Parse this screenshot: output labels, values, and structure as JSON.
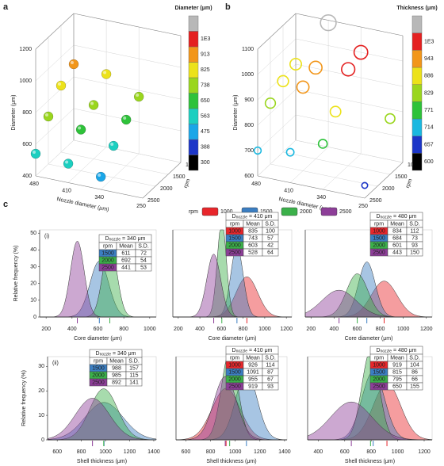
{
  "chart_data": [
    {
      "type": "scatter3d",
      "panel_label": "a",
      "marker": "sphere",
      "xlabel": "Nozzle diameter (μm)",
      "ylabel": "rpm",
      "zlabel": "Diameter (μm)",
      "xlim": [
        480,
        250
      ],
      "xticks": [
        480,
        410,
        340,
        250
      ],
      "ylim": [
        2500,
        1000
      ],
      "yticks": [
        2500,
        2000,
        1500,
        1000
      ],
      "zlim": [
        400,
        1200
      ],
      "zticks": [
        400,
        600,
        800,
        1000,
        1200
      ],
      "colorbar": {
        "title": "Diameter (μm)",
        "ticks": [
          300,
          388,
          475,
          563,
          650,
          738,
          825,
          913,
          {
            "value": 1000,
            "label": "1E3"
          }
        ],
        "colors": [
          "#000000",
          "#1c36c8",
          "#1aa6e8",
          "#1ccfc0",
          "#2ec23a",
          "#9ad61e",
          "#ece21a",
          "#f2961a",
          "#e42020"
        ],
        "over_color": "#b8b8b8"
      },
      "points": {
        "x": [
          480,
          480,
          480,
          480,
          410,
          410,
          410,
          410,
          340,
          340,
          340,
          340
        ],
        "y": [
          1000,
          1500,
          2000,
          2500,
          1000,
          1500,
          2000,
          2500,
          1000,
          1500,
          2000,
          2500
        ],
        "z": [
          880,
          820,
          700,
          540,
          860,
          740,
          660,
          520,
          760,
          690,
          600,
          480
        ]
      }
    },
    {
      "type": "scatter3d",
      "panel_label": "b",
      "marker": "ring",
      "xlabel": "Nozzle diameter (μm)",
      "ylabel": "rpm",
      "zlabel": "Diameter (μm)",
      "xlim": [
        480,
        250
      ],
      "xticks": [
        480,
        410,
        340,
        250
      ],
      "ylim": [
        2500,
        1000
      ],
      "yticks": [
        2500,
        2000,
        1500,
        1000
      ],
      "zlim": [
        600,
        1100
      ],
      "zticks": [
        600,
        700,
        800,
        900,
        1000,
        1100
      ],
      "colorbar": {
        "title": "Thickness (μm)",
        "ticks": [
          600,
          657,
          714,
          771,
          829,
          886,
          943,
          {
            "value": 1000,
            "label": "1E3"
          }
        ],
        "colors": [
          "#000000",
          "#1c36c8",
          "#1ab8e0",
          "#2ec23a",
          "#9ad61e",
          "#ece21a",
          "#f2961a",
          "#e42020"
        ],
        "over_color": "#b8b8b8"
      },
      "points": {
        "x": [
          480,
          480,
          480,
          480,
          410,
          410,
          410,
          410,
          340,
          340,
          340,
          340,
          250,
          250
        ],
        "y": [
          1000,
          1500,
          2000,
          2500,
          1000,
          1500,
          2000,
          2500,
          1000,
          1500,
          2000,
          2500,
          1500,
          2500
        ],
        "z": [
          900,
          880,
          840,
          700,
          1090,
          960,
          930,
          720,
          1000,
          980,
          860,
          780,
          820,
          650
        ]
      }
    },
    {
      "type": "density",
      "panel_label": "c",
      "legend_title": "rpm",
      "legend": [
        {
          "name": "1000",
          "color": "#e8262b"
        },
        {
          "name": "1500",
          "color": "#3b7ec2"
        },
        {
          "name": "2000",
          "color": "#3bb04a"
        },
        {
          "name": "2500",
          "color": "#8d3e98"
        }
      ],
      "row_label": "(i)",
      "ylabel": "Relative frequency (%)",
      "xlabel": "Core diameter (μm)",
      "xlim": [
        150,
        1050
      ],
      "xticks": [
        200,
        400,
        600,
        800,
        1000
      ],
      "ylim": [
        0,
        52
      ],
      "yticks": [
        0,
        10,
        20,
        30,
        40,
        50
      ],
      "table_title": {
        "main": "D",
        "sub": "nozzle",
        "rest": " = 340 μm"
      },
      "table_header": [
        "rpm",
        "Mean",
        "S.D."
      ],
      "series": [
        {
          "name": "1500",
          "color": "#3b7ec2",
          "mean": 611,
          "sd": 72
        },
        {
          "name": "2000",
          "color": "#3bb04a",
          "mean": 692,
          "sd": 54
        },
        {
          "name": "2500",
          "color": "#8d3e98",
          "mean": 441,
          "sd": 53
        }
      ]
    },
    {
      "type": "density",
      "xlabel": "Core diameter (μm)",
      "xlim": [
        150,
        1250
      ],
      "xticks": [
        200,
        400,
        600,
        800,
        1000,
        1200
      ],
      "ylim": [
        0,
        52
      ],
      "table_title": {
        "main": "D",
        "sub": "nozzle",
        "rest": " = 410 μm"
      },
      "table_header": [
        "rpm",
        "Mean",
        "S.D."
      ],
      "series": [
        {
          "name": "1000",
          "color": "#e8262b",
          "mean": 835,
          "sd": 100
        },
        {
          "name": "1500",
          "color": "#3b7ec2",
          "mean": 743,
          "sd": 57
        },
        {
          "name": "2000",
          "color": "#3bb04a",
          "mean": 603,
          "sd": 42
        },
        {
          "name": "2500",
          "color": "#8d3e98",
          "mean": 528,
          "sd": 64
        }
      ]
    },
    {
      "type": "density",
      "xlabel": "Core diameter (μm)",
      "xlim": [
        150,
        1250
      ],
      "xticks": [
        200,
        400,
        600,
        800,
        1000,
        1200
      ],
      "ylim": [
        0,
        52
      ],
      "table_title": {
        "main": "D",
        "sub": "nozzle",
        "rest": " = 480 μm"
      },
      "table_header": [
        "rpm",
        "Mean",
        "S.D."
      ],
      "series": [
        {
          "name": "1000",
          "color": "#e8262b",
          "mean": 834,
          "sd": 112
        },
        {
          "name": "1500",
          "color": "#3b7ec2",
          "mean": 684,
          "sd": 73
        },
        {
          "name": "2000",
          "color": "#3bb04a",
          "mean": 601,
          "sd": 93
        },
        {
          "name": "2500",
          "color": "#8d3e98",
          "mean": 443,
          "sd": 150
        }
      ]
    },
    {
      "type": "density",
      "row_label": "(ii)",
      "ylabel": "Relative frequency (%)",
      "xlabel": "Shell thickness (μm)",
      "xlim": [
        520,
        1420
      ],
      "xticks": [
        600,
        800,
        1000,
        1200,
        1400
      ],
      "ylim": [
        0,
        34
      ],
      "yticks": [
        0,
        10,
        20,
        30
      ],
      "table_title": {
        "main": "D",
        "sub": "nozzle",
        "rest": " = 340 μm"
      },
      "table_header": [
        "rpm",
        "Mean",
        "S.D."
      ],
      "series": [
        {
          "name": "1500",
          "color": "#3b7ec2",
          "mean": 988,
          "sd": 157
        },
        {
          "name": "2000",
          "color": "#3bb04a",
          "mean": 985,
          "sd": 115
        },
        {
          "name": "2500",
          "color": "#8d3e98",
          "mean": 892,
          "sd": 141
        }
      ]
    },
    {
      "type": "density",
      "xlabel": "Shell thickness (μm)",
      "xlim": [
        520,
        1420
      ],
      "xticks": [
        600,
        800,
        1000,
        1200,
        1400
      ],
      "ylim": [
        0,
        34
      ],
      "table_title": {
        "main": "D",
        "sub": "nozzle",
        "rest": " = 410 μm"
      },
      "table_header": [
        "rpm",
        "Mean",
        "S.D."
      ],
      "series": [
        {
          "name": "1000",
          "color": "#e8262b",
          "mean": 926,
          "sd": 114
        },
        {
          "name": "1500",
          "color": "#3b7ec2",
          "mean": 1091,
          "sd": 87
        },
        {
          "name": "2000",
          "color": "#3bb04a",
          "mean": 955,
          "sd": 67
        },
        {
          "name": "2500",
          "color": "#8d3e98",
          "mean": 919,
          "sd": 93
        }
      ]
    },
    {
      "type": "density",
      "xlabel": "Shell thickness (μm)",
      "xlim": [
        320,
        1260
      ],
      "xticks": [
        400,
        600,
        800,
        1000,
        1200
      ],
      "ylim": [
        0,
        34
      ],
      "table_title": {
        "main": "D",
        "sub": "nozzle",
        "rest": " = 480 μm"
      },
      "table_header": [
        "rpm",
        "Mean",
        "S.D."
      ],
      "series": [
        {
          "name": "1000",
          "color": "#e8262b",
          "mean": 919,
          "sd": 104
        },
        {
          "name": "1500",
          "color": "#3b7ec2",
          "mean": 815,
          "sd": 86
        },
        {
          "name": "2000",
          "color": "#3bb04a",
          "mean": 795,
          "sd": 66
        },
        {
          "name": "2500",
          "color": "#8d3e98",
          "mean": 650,
          "sd": 155
        }
      ]
    }
  ]
}
